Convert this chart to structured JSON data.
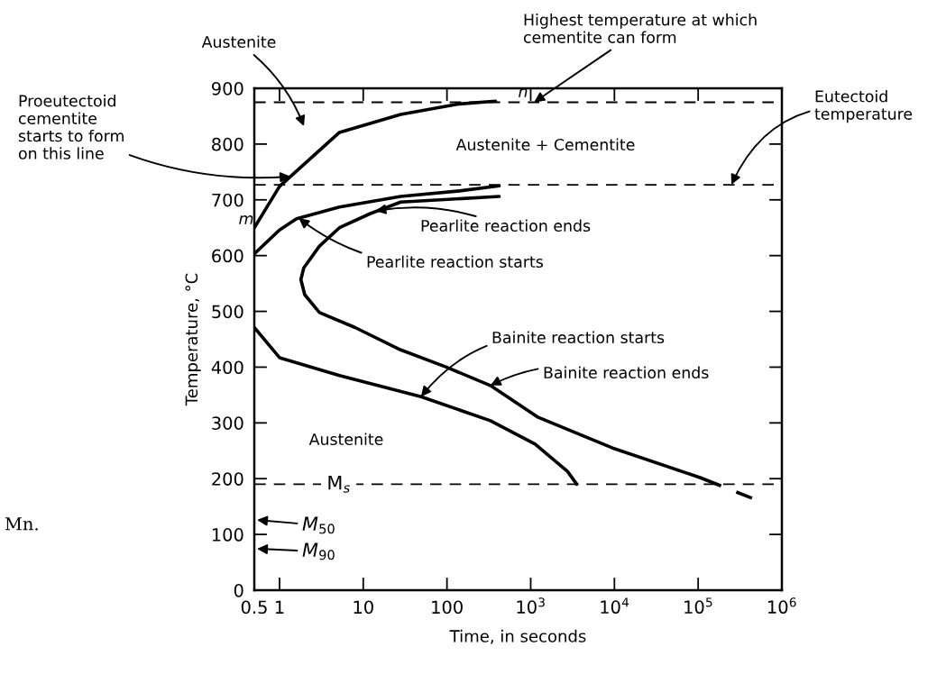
{
  "chart_data": {
    "type": "line",
    "xlabel": "Time, in seconds",
    "ylabel": "Temperature, °C",
    "log": "x",
    "xlim": [
      0.5,
      1000000
    ],
    "ylim": [
      0,
      900
    ],
    "xticks": [
      0.5,
      1,
      10,
      100,
      {
        "value": 1000,
        "label": "10$^{3}$"
      },
      {
        "value": 10000,
        "label": "10$^{4}$"
      },
      {
        "value": 100000,
        "label": "10$^{5}$"
      },
      {
        "value": 1000000,
        "label": "10$^{6}$"
      }
    ],
    "yticks": [
      0,
      100,
      200,
      300,
      400,
      500,
      600,
      700,
      800,
      900
    ],
    "grid": false,
    "legend": false,
    "marker": "none",
    "line_style": "solid",
    "series": [
      {
        "color": "#000000",
        "x": [
          0.5,
          1,
          5.2,
          28,
          141,
          380
        ],
        "values": [
          650,
          724,
          821,
          853,
          872,
          877
        ]
      },
      {
        "color": "#000000",
        "x": [
          0.5,
          1,
          1.6,
          5.2,
          28,
          141,
          420
        ],
        "values": [
          603,
          646,
          666,
          687,
          706,
          716,
          725
        ]
      },
      {
        "color": "#000000",
        "x": [
          420,
          28,
          12,
          5.2,
          3,
          1.95,
          1.8,
          2,
          3,
          8,
          28,
          95,
          330,
          1230,
          9500,
          105000
        ],
        "values": [
          706,
          696,
          675,
          650,
          617,
          578,
          557,
          530,
          498,
          471,
          431,
          401,
          367,
          310,
          255,
          202
        ]
      },
      {
        "color": "#000000",
        "x": [
          105000,
          440000
        ],
        "values": [
          202,
          165
        ],
        "line_style": "dashed"
      },
      {
        "color": "#000000",
        "x": [
          0.5,
          1,
          5.2,
          49,
          330,
          1130,
          2750,
          3550
        ],
        "values": [
          471,
          417,
          385,
          347,
          304,
          262,
          213,
          190
        ]
      }
    ],
    "ref_lines": [
      {
        "axis": "y",
        "value": 875,
        "color": "#000000",
        "line_style": "dashed"
      },
      {
        "axis": "y",
        "value": 727,
        "color": "#000000",
        "line_style": "dashed"
      },
      {
        "axis": "y",
        "value": 190,
        "label": "M$_{s}$",
        "color": "#000000",
        "line_style": "dashed"
      }
    ],
    "annotations": [
      "Austenite",
      {
        "text": "Proeutectoid\ncementite\nstarts to form\non this line",
        "x": 1.35,
        "y": 742
      },
      {
        "text": "Highest temperature at which\ncementite can form",
        "x": 1100,
        "y": 875
      },
      {
        "text": "Eutectoid\ntemperature",
        "x": 250000,
        "y": 727
      },
      "Austenite + Cementite",
      {
        "text": "Pearlite reaction ends",
        "x": 14,
        "y": 680
      },
      {
        "text": "Pearlite reaction starts",
        "x": 1.7,
        "y": 667
      },
      {
        "text": "Bainite reaction starts",
        "x": 49,
        "y": 347
      },
      {
        "text": "Bainite reaction ends",
        "x": 330,
        "y": 367
      },
      "Austenite",
      "m",
      "n",
      "M$_{50}$",
      "M$_{90}$",
      "Mn."
    ]
  }
}
